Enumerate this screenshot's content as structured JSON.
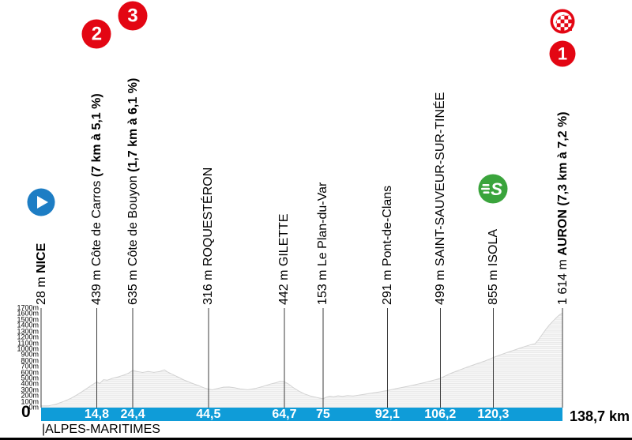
{
  "page": {
    "km_start_label": "0",
    "total_distance_label": "138,7 km",
    "department_label": "|ALPES-MARITIMES"
  },
  "colors": {
    "bar_blue": "#0f9cd8",
    "badge_red": "#e30613",
    "sprint_green": "#3aa43c",
    "start_blue": "#1d7dc4",
    "profile_fill": "#e9e9e9",
    "profile_stripe": "#ffffff",
    "profile_edge": "#d2d2d2",
    "marker_line": "#3d3d3d",
    "text_black": "#000000",
    "bar_text_white": "#ffffff"
  },
  "chart_data": {
    "type": "area",
    "x_unit": "km",
    "x_range": [
      0,
      138.7
    ],
    "y_unit": "m",
    "y_range": [
      0,
      1700
    ],
    "grid": "horizontal-stripes",
    "y_ticks": [
      "1700m",
      "1600m",
      "1500m",
      "1400m",
      "1300m",
      "1200m",
      "1100m",
      "1000m",
      "900m",
      "800m",
      "700m",
      "600m",
      "500m",
      "400m",
      "300m",
      "200m",
      "100m",
      "0m"
    ],
    "waypoints": [
      {
        "km": 0,
        "bar_label": "",
        "text": "28 m ",
        "bold": "NICE",
        "icons": [
          {
            "type": "start",
            "y": 256,
            "d": 35
          }
        ]
      },
      {
        "km": 14.8,
        "bar_label": "14,8",
        "text": "439 m Côte de Carros ",
        "bold": "(7 km à 5,1 %)",
        "icons": [
          {
            "type": "category",
            "label": "2",
            "y": 43,
            "d": 37
          }
        ]
      },
      {
        "km": 24.4,
        "bar_label": "24,4",
        "text": "635 m Côte de Bouyon ",
        "bold": "(1,7 km à 6,1 %)",
        "icons": [
          {
            "type": "category",
            "label": "3",
            "y": 20,
            "d": 37
          }
        ]
      },
      {
        "km": 44.5,
        "bar_label": "44,5",
        "text": "316 m ROQUESTÉRON",
        "bold": "",
        "icons": []
      },
      {
        "km": 64.7,
        "bar_label": "64,7",
        "text": "442 m GILETTE",
        "bold": "",
        "icons": []
      },
      {
        "km": 75,
        "bar_label": "75",
        "text": "153 m Le Plan-du-Var",
        "bold": "",
        "icons": []
      },
      {
        "km": 92.1,
        "bar_label": "92,1",
        "text": "291 m Pont-de-Clans",
        "bold": "",
        "icons": []
      },
      {
        "km": 106.2,
        "bar_label": "106,2",
        "text": "499 m SAINT-SAUVEUR-SUR-TINÉE",
        "bold": "",
        "icons": []
      },
      {
        "km": 120.3,
        "bar_label": "120,3",
        "text": "855 m ISOLA",
        "bold": "",
        "icons": [
          {
            "type": "sprint",
            "label": "S",
            "y": 239,
            "d": 37
          }
        ]
      },
      {
        "km": 138.7,
        "bar_label": "",
        "text": "1 614 m ",
        "bold": "AURON (7,3 km à 7,2 %)",
        "icons": [
          {
            "type": "category",
            "label": "1",
            "y": 68,
            "d": 33
          },
          {
            "type": "finish",
            "y": 27,
            "d": 31
          }
        ]
      }
    ],
    "profile_points": [
      [
        0,
        28
      ],
      [
        2,
        30
      ],
      [
        4,
        60
      ],
      [
        6,
        105
      ],
      [
        8,
        160
      ],
      [
        10,
        235
      ],
      [
        12,
        320
      ],
      [
        13.5,
        385
      ],
      [
        14.8,
        439
      ],
      [
        15.6,
        412
      ],
      [
        16.6,
        478
      ],
      [
        17.6,
        468
      ],
      [
        19,
        500
      ],
      [
        20.5,
        525
      ],
      [
        22,
        555
      ],
      [
        23.2,
        585
      ],
      [
        24.4,
        635
      ],
      [
        25.5,
        618
      ],
      [
        27,
        600
      ],
      [
        28.5,
        618
      ],
      [
        30,
        602
      ],
      [
        31.5,
        615
      ],
      [
        32.8,
        645
      ],
      [
        33.6,
        610
      ],
      [
        35,
        565
      ],
      [
        36.5,
        520
      ],
      [
        38,
        472
      ],
      [
        40,
        420
      ],
      [
        42,
        372
      ],
      [
        43.5,
        335
      ],
      [
        44.5,
        316
      ],
      [
        45.5,
        304
      ],
      [
        47,
        328
      ],
      [
        48.5,
        350
      ],
      [
        50,
        352
      ],
      [
        51.5,
        338
      ],
      [
        53,
        318
      ],
      [
        55,
        305
      ],
      [
        57,
        327
      ],
      [
        59,
        362
      ],
      [
        61,
        402
      ],
      [
        62.5,
        425
      ],
      [
        63.6,
        448
      ],
      [
        64.7,
        442
      ],
      [
        65.8,
        405
      ],
      [
        67,
        345
      ],
      [
        68.5,
        285
      ],
      [
        70,
        235
      ],
      [
        72,
        192
      ],
      [
        73.5,
        170
      ],
      [
        75,
        153
      ],
      [
        75.8,
        176
      ],
      [
        76.8,
        196
      ],
      [
        77.8,
        184
      ],
      [
        79,
        202
      ],
      [
        80.2,
        192
      ],
      [
        81.5,
        206
      ],
      [
        83,
        198
      ],
      [
        84.5,
        212
      ],
      [
        86,
        228
      ],
      [
        88,
        248
      ],
      [
        90,
        268
      ],
      [
        92.1,
        291
      ],
      [
        94,
        318
      ],
      [
        96,
        344
      ],
      [
        98,
        370
      ],
      [
        100,
        398
      ],
      [
        102,
        428
      ],
      [
        104,
        461
      ],
      [
        106.2,
        499
      ],
      [
        107.5,
        540
      ],
      [
        109,
        585
      ],
      [
        110.5,
        622
      ],
      [
        112,
        658
      ],
      [
        113.5,
        695
      ],
      [
        115,
        728
      ],
      [
        116.5,
        762
      ],
      [
        118,
        795
      ],
      [
        119,
        820
      ],
      [
        120.3,
        855
      ],
      [
        121.5,
        885
      ],
      [
        123,
        920
      ],
      [
        124.5,
        952
      ],
      [
        126,
        985
      ],
      [
        127.5,
        1018
      ],
      [
        129,
        1050
      ],
      [
        130.3,
        1075
      ],
      [
        131.4,
        1092
      ],
      [
        132.2,
        1150
      ],
      [
        133.2,
        1240
      ],
      [
        134.2,
        1330
      ],
      [
        135.2,
        1410
      ],
      [
        136.2,
        1480
      ],
      [
        137.2,
        1545
      ],
      [
        138,
        1590
      ],
      [
        138.7,
        1614
      ]
    ]
  }
}
